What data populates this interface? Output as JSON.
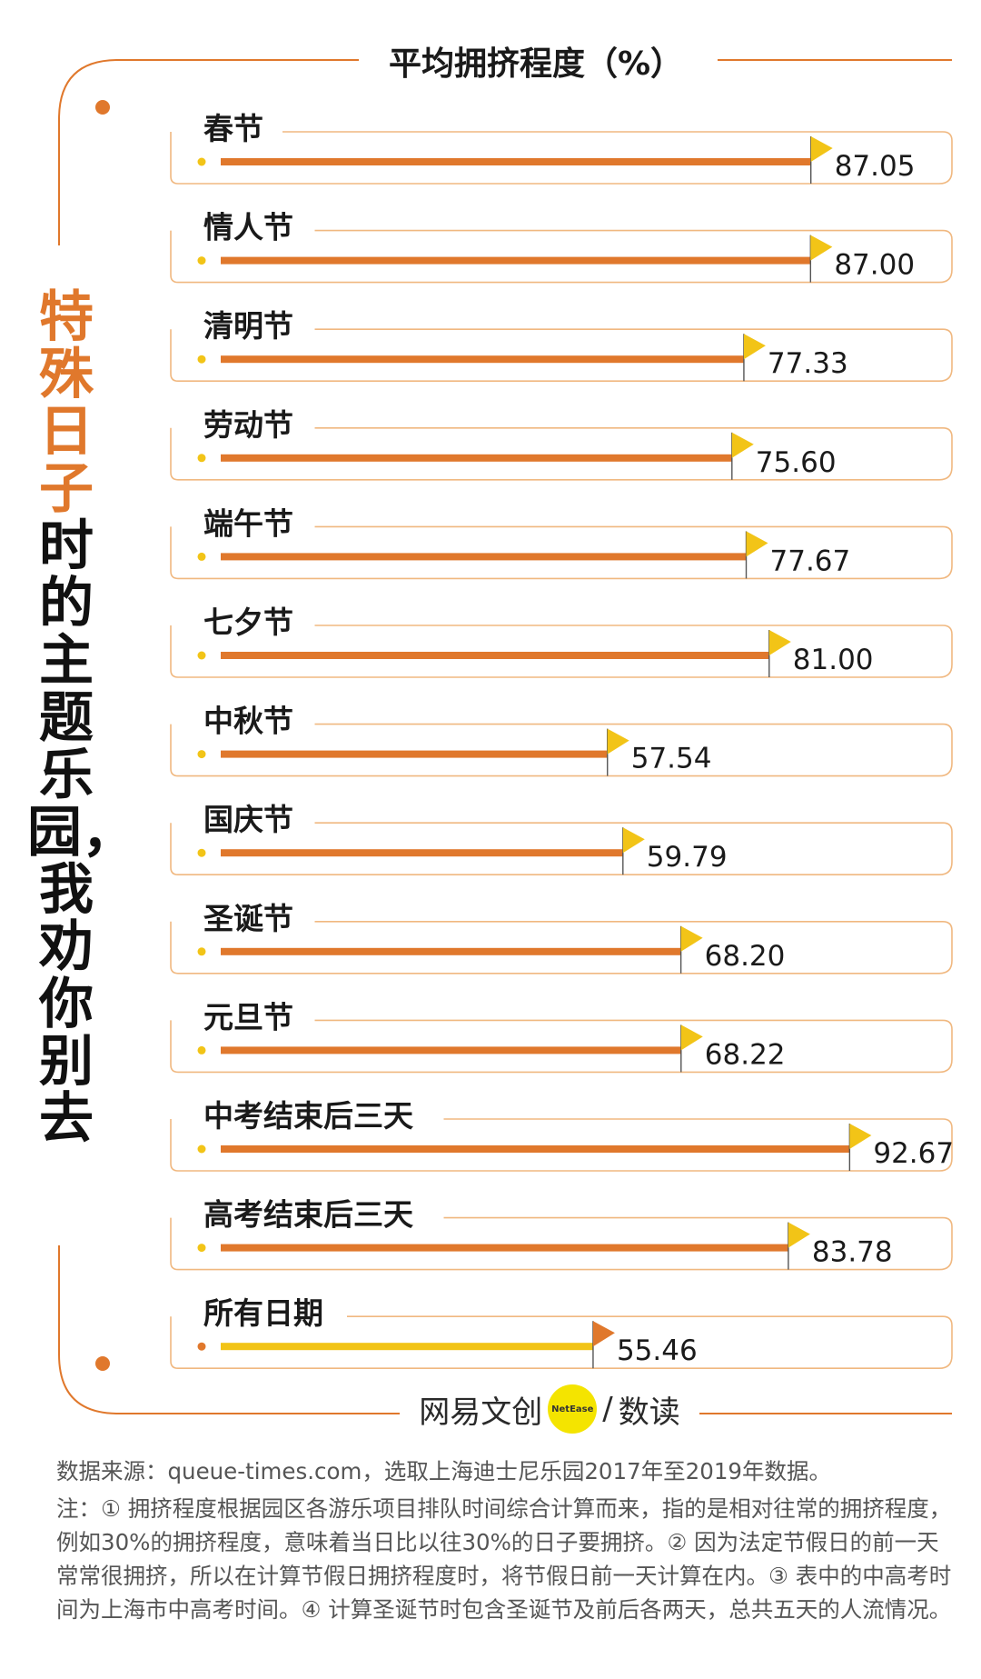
{
  "title_highlight": "特殊日子",
  "title_rest": "时的主题乐园，我劝你别去",
  "chart_data": {
    "type": "bar",
    "orientation": "horizontal",
    "title": "平均拥挤程度（%）",
    "unit": "%",
    "categories": [
      "春节",
      "情人节",
      "清明节",
      "劳动节",
      "端午节",
      "七夕节",
      "中秋节",
      "国庆节",
      "圣诞节",
      "元旦节",
      "中考结束后三天",
      "高考结束后三天",
      "所有日期"
    ],
    "values": [
      87.05,
      87.0,
      77.33,
      75.6,
      77.67,
      81.0,
      57.54,
      59.79,
      68.2,
      68.22,
      92.67,
      83.78,
      55.46
    ],
    "value_labels": [
      "87.05",
      "87.00",
      "77.33",
      "75.60",
      "77.67",
      "81.00",
      "57.54",
      "59.79",
      "68.20",
      "68.22",
      "92.67",
      "83.78",
      "55.46"
    ],
    "highlight_category": "所有日期",
    "colors": {
      "bar": "#e0782c",
      "highlight_bar": "#f2c417",
      "flag": "#f2c417",
      "highlight_flag": "#e0782c",
      "frame": "#f0b880",
      "dot": "#f2c417",
      "highlight_dot": "#e0782c"
    },
    "grid": false,
    "legend": "none"
  },
  "brand": {
    "name": "网易文创",
    "badge": "NetEase",
    "sub": "数读",
    "separator": "/"
  },
  "footer": {
    "source": "数据来源：queue-times.com，选取上海迪士尼乐园2017年至2019年数据。",
    "notes": "注：① 拥挤程度根据园区各游乐项目排队时间综合计算而来，指的是相对往常的拥挤程度，例如30%的拥挤程度，意味着当日比以往30%的日子要拥挤。② 因为法定节假日的前一天常常很拥挤，所以在计算节假日拥挤程度时，将节假日前一天计算在内。③ 表中的中高考时间为上海市中高考时间。④ 计算圣诞节时包含圣诞节及前后各两天，总共五天的人流情况。"
  }
}
